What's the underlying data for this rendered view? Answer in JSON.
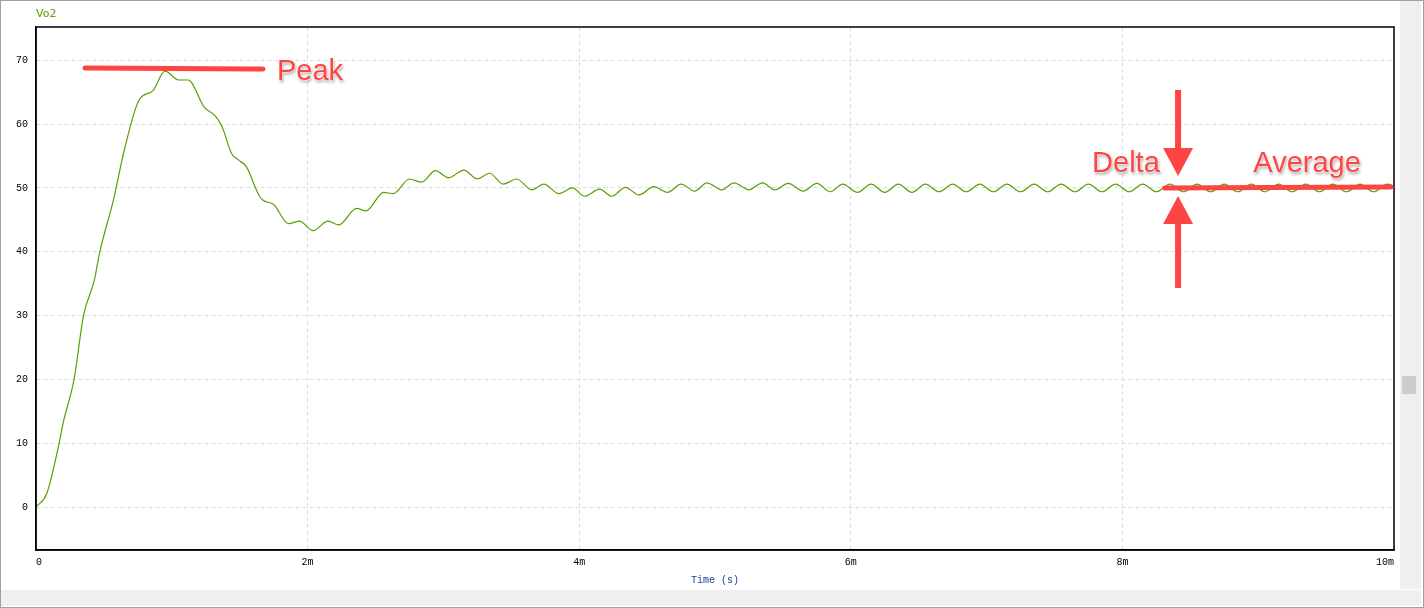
{
  "chart_data": {
    "type": "line",
    "legend": "top left",
    "marker": "none",
    "line_style": "solid",
    "grid": true,
    "xlabel": "Time (s)",
    "xlim": [
      0,
      10
    ],
    "xticks": [
      0,
      {
        "value": 2,
        "label": "2m"
      },
      {
        "value": 4,
        "label": "4m"
      },
      {
        "value": 6,
        "label": "6m"
      },
      {
        "value": 8,
        "label": "8m"
      },
      {
        "value": 10,
        "label": "10m"
      }
    ],
    "ylim": [
      -6.7,
      75.2
    ],
    "yticks": [
      0,
      10,
      20,
      30,
      40,
      50,
      60,
      70
    ],
    "annotations": [
      "Peak",
      {
        "text": "Delta",
        "x": 8.41,
        "y": 50
      },
      {
        "text": "Average",
        "x": 9.2,
        "y": 50
      }
    ],
    "series": [
      {
        "name": "Vo2",
        "color": "#5aa000",
        "x": [
          0,
          0.08,
          0.17,
          0.2,
          0.28,
          0.35,
          0.43,
          0.47,
          0.57,
          0.65,
          0.76,
          0.86,
          0.95,
          1.05,
          1.12,
          1.24,
          1.32,
          1.37,
          1.44,
          1.49,
          1.55,
          1.64,
          1.67,
          1.75,
          1.86,
          1.94,
          2.04,
          2.15,
          2.23,
          2.36,
          2.43,
          2.56,
          2.63,
          2.75,
          2.84,
          2.94,
          3.04,
          3.15,
          3.25,
          3.34,
          3.44,
          3.54,
          3.65,
          3.74,
          3.85,
          3.95,
          4.04,
          4.15,
          4.24,
          4.34,
          4.44,
          4.55,
          4.65,
          4.75,
          4.85,
          4.94,
          5.05,
          5.14,
          5.25,
          5.35,
          5.44,
          5.54,
          5.65,
          5.75,
          5.85,
          5.94,
          6.05,
          6.15,
          6.25,
          6.35,
          6.45,
          6.55,
          6.65,
          6.75,
          6.85,
          6.95,
          7.05,
          7.15,
          7.25,
          7.35,
          7.45,
          7.55,
          7.65,
          7.75,
          7.85,
          7.95,
          8.05,
          8.15,
          8.25,
          8.35,
          8.45,
          8.55,
          8.65,
          8.75,
          8.85,
          8.95,
          9.05,
          9.15,
          9.25,
          9.35,
          9.45,
          9.55,
          9.65,
          9.75,
          9.85,
          9.95,
          10
        ],
        "values": [
          0,
          2.2,
          10,
          13.2,
          20,
          30,
          35.6,
          40,
          48.1,
          55.9,
          63.8,
          65.2,
          68.3,
          66.9,
          66.9,
          62.6,
          61.3,
          59.6,
          55.4,
          54.4,
          53.3,
          48.9,
          48.1,
          47.4,
          44.4,
          44.8,
          43.3,
          44.8,
          44.2,
          46.8,
          46.4,
          49.3,
          49.1,
          51.4,
          50.9,
          52.7,
          51.6,
          52.8,
          51.4,
          52.3,
          50.6,
          51.4,
          49.7,
          50.6,
          49.1,
          50.0,
          48.7,
          49.8,
          48.7,
          50.1,
          48.9,
          50.2,
          49.3,
          50.6,
          49.5,
          50.8,
          49.7,
          50.8,
          49.7,
          50.8,
          49.7,
          50.7,
          49.5,
          50.7,
          49.4,
          50.6,
          49.3,
          50.6,
          49.3,
          50.6,
          49.3,
          50.6,
          49.4,
          50.6,
          49.4,
          50.6,
          49.4,
          50.6,
          49.4,
          50.6,
          49.4,
          50.6,
          49.4,
          50.6,
          49.4,
          50.6,
          49.4,
          50.6,
          49.4,
          50.6,
          49.4,
          50.6,
          49.4,
          50.6,
          49.4,
          50.6,
          49.4,
          50.6,
          49.4,
          50.6,
          49.4,
          50.6,
          49.4,
          50.6,
          49.4,
          50.6,
          50.3
        ]
      }
    ]
  }
}
